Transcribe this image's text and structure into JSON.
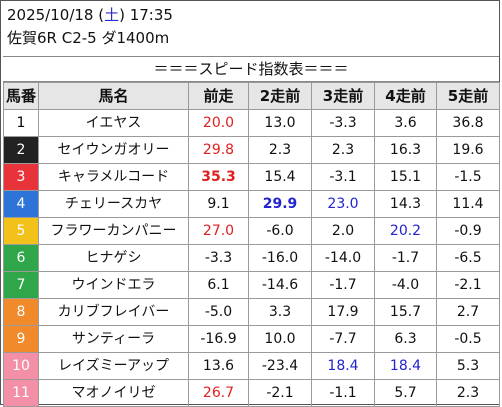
{
  "header": {
    "date_prefix": "2025/10/18 (",
    "day_of_week": "土",
    "date_suffix": ") 17:35",
    "race_line": "佐賀6R C2-5 ダ1400m",
    "title": "＝＝＝スピード指数表＝＝＝"
  },
  "colors": {
    "text_red": "#e02020",
    "text_blue": "#2323cf",
    "header_bg": "#e6e6e6"
  },
  "columns": [
    "馬番",
    "馬名",
    "前走",
    "2走前",
    "3走前",
    "4走前",
    "5走前"
  ],
  "horses": [
    {
      "no": "1",
      "bg": "#ffffff",
      "fg": "#000000",
      "name": "イエヤス",
      "vals": [
        {
          "v": "20.0",
          "c": "red"
        },
        {
          "v": "13.0"
        },
        {
          "v": "-3.3"
        },
        {
          "v": "3.6"
        },
        {
          "v": "36.8"
        }
      ]
    },
    {
      "no": "2",
      "bg": "#222222",
      "fg": "#ffffff",
      "name": "セイウンガオリー",
      "vals": [
        {
          "v": "29.8",
          "c": "red"
        },
        {
          "v": "2.3"
        },
        {
          "v": "2.3"
        },
        {
          "v": "16.3"
        },
        {
          "v": "19.6"
        }
      ]
    },
    {
      "no": "3",
      "bg": "#e8333b",
      "fg": "#ffffff",
      "name": "キャラメルコード",
      "vals": [
        {
          "v": "35.3",
          "c": "red",
          "b": true
        },
        {
          "v": "15.4"
        },
        {
          "v": "-3.1"
        },
        {
          "v": "15.1"
        },
        {
          "v": "-1.5"
        }
      ]
    },
    {
      "no": "4",
      "bg": "#2e73d8",
      "fg": "#ffffff",
      "name": "チェリースカヤ",
      "vals": [
        {
          "v": "9.1"
        },
        {
          "v": "29.9",
          "c": "blue",
          "b": true
        },
        {
          "v": "23.0",
          "c": "blue"
        },
        {
          "v": "14.3"
        },
        {
          "v": "11.4"
        }
      ]
    },
    {
      "no": "5",
      "bg": "#f2c21b",
      "fg": "#ffffff",
      "name": "フラワーカンパニー",
      "vals": [
        {
          "v": "27.0",
          "c": "red"
        },
        {
          "v": "-6.0"
        },
        {
          "v": "2.0"
        },
        {
          "v": "20.2",
          "c": "blue"
        },
        {
          "v": "-0.9"
        }
      ]
    },
    {
      "no": "6",
      "bg": "#2fa64a",
      "fg": "#ffffff",
      "name": "ヒナゲシ",
      "vals": [
        {
          "v": "-3.3"
        },
        {
          "v": "-16.0"
        },
        {
          "v": "-14.0"
        },
        {
          "v": "-1.7"
        },
        {
          "v": "-6.5"
        }
      ]
    },
    {
      "no": "7",
      "bg": "#2fa64a",
      "fg": "#ffffff",
      "name": "ウインドエラ",
      "vals": [
        {
          "v": "6.1"
        },
        {
          "v": "-14.6"
        },
        {
          "v": "-1.7"
        },
        {
          "v": "-4.0"
        },
        {
          "v": "-2.1"
        }
      ]
    },
    {
      "no": "8",
      "bg": "#f08a2a",
      "fg": "#ffffff",
      "name": "カリブフレイバー",
      "vals": [
        {
          "v": "-5.0"
        },
        {
          "v": "3.3"
        },
        {
          "v": "17.9"
        },
        {
          "v": "15.7"
        },
        {
          "v": "2.7"
        }
      ]
    },
    {
      "no": "9",
      "bg": "#f08a2a",
      "fg": "#ffffff",
      "name": "サンティーラ",
      "vals": [
        {
          "v": "-16.9"
        },
        {
          "v": "10.0"
        },
        {
          "v": "-7.7"
        },
        {
          "v": "6.3"
        },
        {
          "v": "-0.5"
        }
      ]
    },
    {
      "no": "10",
      "bg": "#f48fa8",
      "fg": "#ffffff",
      "name": "レイズミーアップ",
      "vals": [
        {
          "v": "13.6"
        },
        {
          "v": "-23.4"
        },
        {
          "v": "18.4",
          "c": "blue"
        },
        {
          "v": "18.4",
          "c": "blue"
        },
        {
          "v": "5.3"
        }
      ]
    },
    {
      "no": "11",
      "bg": "#f48fa8",
      "fg": "#ffffff",
      "name": "マオノイリゼ",
      "vals": [
        {
          "v": "26.7",
          "c": "red"
        },
        {
          "v": "-2.1"
        },
        {
          "v": "-1.1"
        },
        {
          "v": "5.7"
        },
        {
          "v": "2.3"
        }
      ]
    }
  ]
}
